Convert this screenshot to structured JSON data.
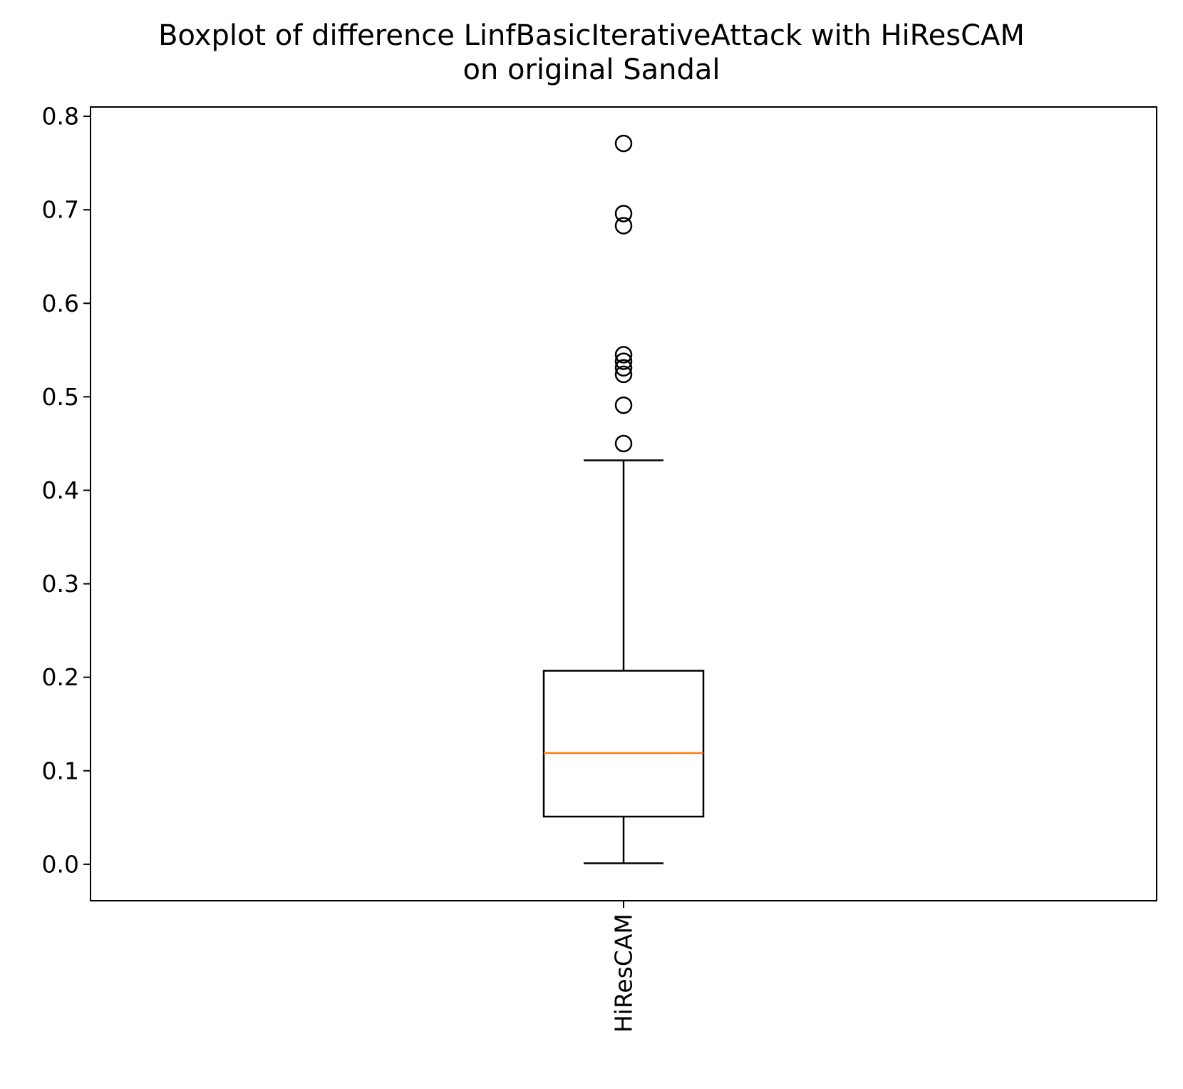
{
  "chart_data": {
    "type": "boxplot",
    "title_lines": [
      "Boxplot of difference LinfBasicIterativeAttack with HiResCAM",
      "on original Sandal"
    ],
    "xlabel": "",
    "ylabel": "",
    "categories": [
      "HiResCAM"
    ],
    "ylim": [
      -0.039,
      0.81
    ],
    "yticks": [
      0.0,
      0.1,
      0.2,
      0.3,
      0.4,
      0.5,
      0.6,
      0.7,
      0.8
    ],
    "ytick_labels": [
      "0.0",
      "0.1",
      "0.2",
      "0.3",
      "0.4",
      "0.5",
      "0.6",
      "0.7",
      "0.8"
    ],
    "grid": false,
    "boxes": [
      {
        "name": "HiResCAM",
        "whisker_low": 0.001,
        "q1": 0.051,
        "median": 0.119,
        "q3": 0.207,
        "whisker_high": 0.432,
        "outliers": [
          0.771,
          0.696,
          0.683,
          0.545,
          0.538,
          0.531,
          0.524,
          0.491,
          0.45
        ]
      }
    ],
    "colors": {
      "box": "#000000",
      "median": "#ff7f0e",
      "outlier": "#000000"
    }
  }
}
